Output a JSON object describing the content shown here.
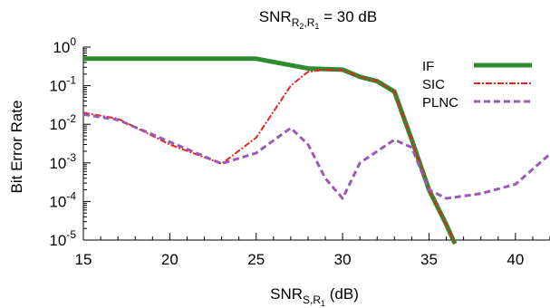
{
  "chart_data": {
    "type": "line",
    "title": {
      "base": "SNR",
      "sub_a": "R",
      "sub_a_sub": "2",
      "sep": ",",
      "sub_b": "R",
      "sub_b_sub": "1",
      "rest": " = 30 dB"
    },
    "xlabel": {
      "base": "SNR",
      "sub_a": "S,R",
      "sub_a_sub": "1",
      "rest": " (dB)"
    },
    "ylabel": "Bit Error Rate",
    "x_scale": "linear",
    "y_scale": "log",
    "xlim": [
      15,
      42
    ],
    "ylim": [
      1e-05,
      1
    ],
    "x_ticks": [
      15,
      20,
      25,
      30,
      35,
      40
    ],
    "x_tick_labels": [
      "15",
      "20",
      "25",
      "30",
      "35",
      "40"
    ],
    "y_ticks": [
      {
        "value": 1,
        "base": "10",
        "exp": "0"
      },
      {
        "value": 0.1,
        "base": "10",
        "exp": "-1"
      },
      {
        "value": 0.01,
        "base": "10",
        "exp": "-2"
      },
      {
        "value": 0.001,
        "base": "10",
        "exp": "-3"
      },
      {
        "value": 0.0001,
        "base": "10",
        "exp": "-4"
      },
      {
        "value": 1e-05,
        "base": "10",
        "exp": "-5"
      }
    ],
    "legend_position": "top-right",
    "series": [
      {
        "name": "IF",
        "color": "#2e8b2e",
        "style": "solid",
        "x": [
          15,
          20,
          25,
          28,
          29,
          30,
          31,
          32,
          33,
          34,
          35,
          36,
          36.5
        ],
        "y": [
          0.5,
          0.5,
          0.5,
          0.28,
          0.27,
          0.26,
          0.17,
          0.13,
          0.07,
          0.004,
          0.0002,
          2.5e-05,
          8e-06
        ]
      },
      {
        "name": "SIC",
        "color": "#e8231e",
        "style": "dashdot",
        "x": [
          15,
          17,
          20,
          23,
          25,
          27,
          28,
          29,
          30,
          31,
          32,
          33,
          34,
          35,
          36,
          36.5
        ],
        "y": [
          0.02,
          0.014,
          0.003,
          0.00095,
          0.0045,
          0.1,
          0.23,
          0.26,
          0.25,
          0.17,
          0.13,
          0.07,
          0.004,
          0.0002,
          2.5e-05,
          8e-06
        ]
      },
      {
        "name": "PLNC",
        "color": "#9b59b6",
        "style": "dashed",
        "x": [
          15,
          17,
          20,
          23,
          25,
          27,
          28,
          29,
          30,
          31,
          32,
          33,
          34,
          35,
          36,
          38,
          40,
          42
        ],
        "y": [
          0.018,
          0.013,
          0.0035,
          0.00095,
          0.0018,
          0.008,
          0.003,
          0.0004,
          0.00012,
          0.001,
          0.002,
          0.004,
          0.0025,
          0.0002,
          0.00012,
          0.00016,
          0.00028,
          0.0017
        ]
      }
    ]
  }
}
